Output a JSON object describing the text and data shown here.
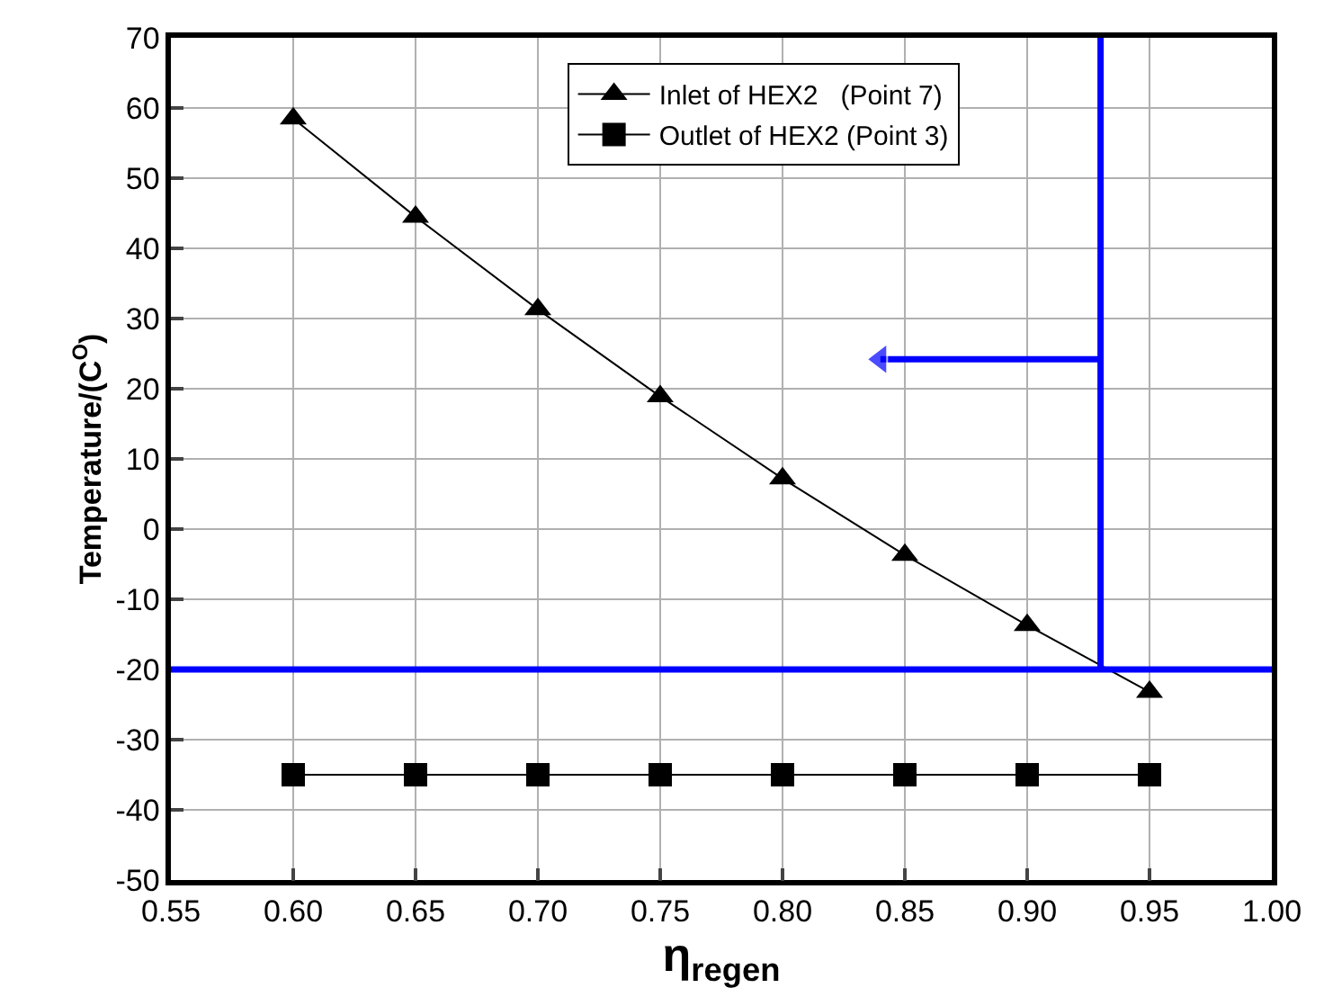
{
  "chart_data": {
    "type": "line",
    "xlabel": "η$_{regen}$",
    "ylabel": "Temperature/(C$^{O}$)",
    "x": [
      0.6,
      0.65,
      0.7,
      0.75,
      0.8,
      0.85,
      0.9,
      0.95
    ],
    "series": [
      {
        "name": "Inlet of HEX2   (Point 7)",
        "color": "#000000",
        "marker": "triangle",
        "values": [
          58.5,
          44.5,
          31.3,
          18.9,
          7.2,
          -3.7,
          -13.7,
          -23.2
        ]
      },
      {
        "name": "Outlet of HEX2 (Point 3)",
        "color": "#000000",
        "marker": "square",
        "values": [
          -35,
          -35,
          -35,
          -35,
          -35,
          -35,
          -35,
          -35
        ]
      },
      {
        "type": "line",
        "color": "#0000ff",
        "marker": "triangle",
        "x": [
          0.93,
          0.84
        ],
        "values": [
          24.2,
          24.2
        ]
      }
    ],
    "xlim": [
      0.55,
      1.0
    ],
    "xticks": [
      {
        "value": 0.55,
        "label": "0.55"
      },
      {
        "value": 0.6,
        "label": "0.60"
      },
      {
        "value": 0.65,
        "label": "0.65"
      },
      {
        "value": 0.7,
        "label": "0.70"
      },
      {
        "value": 0.75,
        "label": "0.75"
      },
      {
        "value": 0.8,
        "label": "0.80"
      },
      {
        "value": 0.85,
        "label": "0.85"
      },
      {
        "value": 0.9,
        "label": "0.90"
      },
      {
        "value": 0.95,
        "label": "0.95"
      },
      {
        "value": 1.0,
        "label": "1.00"
      }
    ],
    "ylim": [
      -50,
      70
    ],
    "yticks": [
      -50,
      -40,
      -30,
      -20,
      -10,
      0,
      10,
      20,
      30,
      40,
      50,
      60,
      70
    ],
    "ref_lines": [
      {
        "axis": "y",
        "value": -20,
        "color": "#0000ff"
      },
      {
        "axis": "x",
        "value": 0.93,
        "color": "#0000ff"
      }
    ],
    "grid": true,
    "legend": "top",
    "line_style": "solid"
  }
}
